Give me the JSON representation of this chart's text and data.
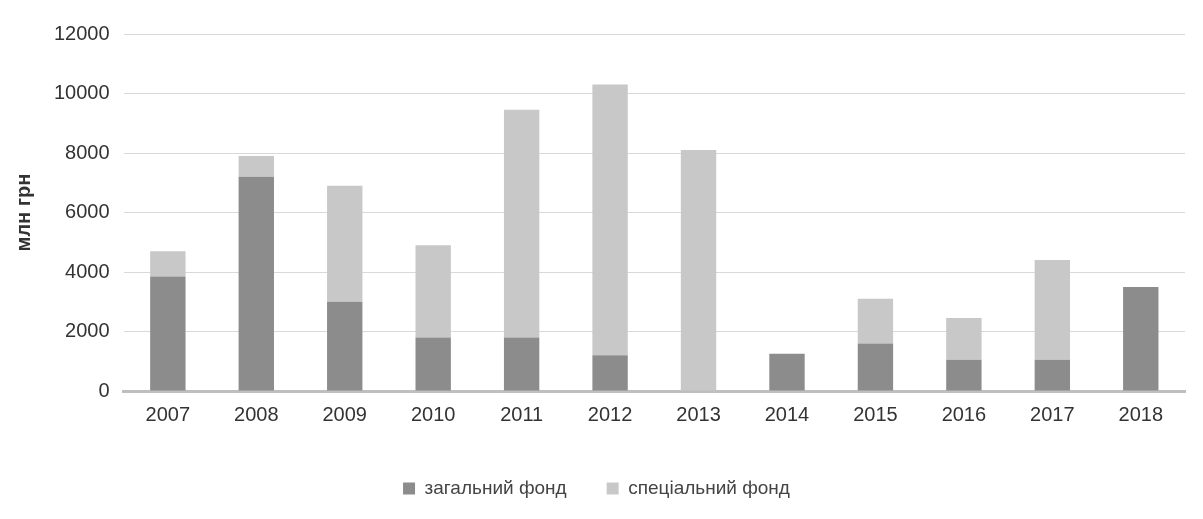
{
  "chart_data": {
    "type": "bar",
    "ylabel": "млн грн",
    "categories": [
      "2007",
      "2008",
      "2009",
      "2010",
      "2011",
      "2012",
      "2013",
      "2014",
      "2015",
      "2016",
      "2017",
      "2018"
    ],
    "stacked": true,
    "series": [
      {
        "name": "загальний фонд",
        "color": "#8c8c8c",
        "values": [
          3850,
          7200,
          3000,
          1800,
          1800,
          1200,
          0,
          1250,
          1600,
          1050,
          1050,
          3500
        ]
      },
      {
        "name": "спеціальний фонд",
        "color": "#c8c8c8",
        "values": [
          850,
          700,
          3900,
          3100,
          7650,
          9100,
          8100,
          0,
          1500,
          1400,
          3350,
          0
        ]
      }
    ],
    "ylim": [
      0,
      12000
    ],
    "yticks": [
      0,
      2000,
      4000,
      6000,
      8000,
      10000,
      12000
    ],
    "grid": "y",
    "legend": "bottom"
  }
}
